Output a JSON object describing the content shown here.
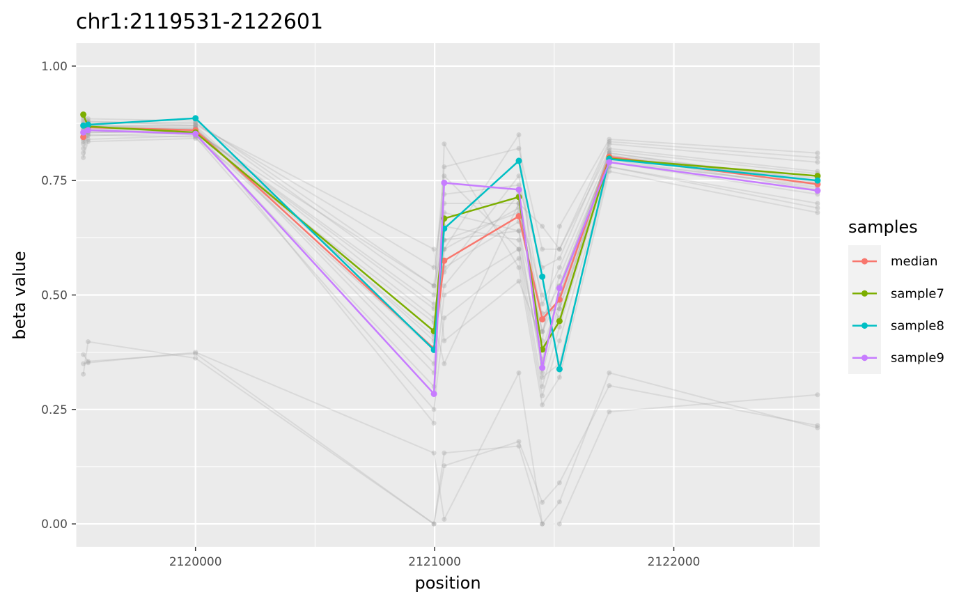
{
  "chart_data": {
    "type": "line",
    "title": "chr1:2119531-2122601",
    "xlabel": "position",
    "ylabel": "beta value",
    "xlim": [
      2119500,
      2122610
    ],
    "ylim": [
      -0.05,
      1.05
    ],
    "x_ticks": [
      2120000,
      2121000,
      2122000
    ],
    "x_tick_labels": [
      "2120000",
      "2121000",
      "2122000"
    ],
    "y_ticks": [
      0,
      0.25,
      0.5,
      0.75,
      1
    ],
    "y_tick_labels": [
      "0.00",
      "0.25",
      "0.50",
      "0.75",
      "1.00"
    ],
    "legend": {
      "title": "samples",
      "position": "right",
      "entries": [
        "median",
        "sample7",
        "sample8",
        "sample9"
      ]
    },
    "x": [
      2119531,
      2119551,
      2120000,
      2120997,
      2121040,
      2121352,
      2121450,
      2121522,
      2121730,
      2122601
    ],
    "series": [
      {
        "name": "median",
        "color": "#F8766D",
        "values": [
          0.845,
          0.866,
          0.86,
          0.383,
          0.575,
          0.672,
          0.447,
          0.49,
          0.802,
          0.742
        ]
      },
      {
        "name": "sample7",
        "color": "#7CAE00",
        "values": [
          0.894,
          0.868,
          0.855,
          0.421,
          0.667,
          0.714,
          0.381,
          0.443,
          0.798,
          0.76
        ]
      },
      {
        "name": "sample8",
        "color": "#00BFC4",
        "values": [
          0.87,
          0.872,
          0.886,
          0.38,
          0.645,
          0.793,
          0.54,
          0.338,
          0.797,
          0.75
        ]
      },
      {
        "name": "sample9",
        "color": "#C77CFF",
        "values": [
          0.855,
          0.86,
          0.852,
          0.284,
          0.745,
          0.73,
          0.341,
          0.515,
          0.79,
          0.728
        ]
      }
    ],
    "background_series": [
      [
        0.82,
        0.848,
        0.855,
        0.52,
        0.62,
        0.64,
        0.42,
        0.54,
        0.8,
        0.76
      ],
      [
        0.835,
        0.855,
        0.858,
        0.48,
        0.7,
        0.7,
        0.38,
        0.5,
        0.81,
        0.75
      ],
      [
        0.86,
        0.87,
        0.862,
        0.45,
        0.56,
        0.66,
        0.46,
        0.47,
        0.79,
        0.74
      ],
      [
        0.88,
        0.88,
        0.87,
        0.4,
        0.6,
        0.69,
        0.5,
        0.45,
        0.82,
        0.77
      ],
      [
        0.85,
        0.865,
        0.865,
        0.35,
        0.65,
        0.62,
        0.35,
        0.52,
        0.805,
        0.73
      ],
      [
        0.84,
        0.86,
        0.85,
        0.3,
        0.5,
        0.6,
        0.3,
        0.43,
        0.79,
        0.72
      ],
      [
        0.87,
        0.875,
        0.875,
        0.56,
        0.72,
        0.74,
        0.56,
        0.58,
        0.83,
        0.79
      ],
      [
        0.83,
        0.85,
        0.845,
        0.25,
        0.45,
        0.58,
        0.28,
        0.4,
        0.78,
        0.7
      ],
      [
        0.89,
        0.885,
        0.88,
        0.52,
        0.78,
        0.82,
        0.6,
        0.6,
        0.835,
        0.8
      ],
      [
        0.86,
        0.86,
        0.86,
        0.42,
        0.62,
        0.68,
        0.42,
        0.5,
        0.8,
        0.75
      ],
      [
        0.85,
        0.855,
        0.858,
        0.47,
        0.55,
        0.76,
        0.48,
        0.56,
        0.81,
        0.745
      ],
      [
        0.875,
        0.87,
        0.868,
        0.33,
        0.68,
        0.64,
        0.33,
        0.47,
        0.795,
        0.735
      ],
      [
        0.81,
        0.84,
        0.848,
        0.38,
        0.6,
        0.85,
        0.32,
        0.35,
        0.78,
        0.69
      ],
      [
        0.845,
        0.862,
        0.864,
        0.22,
        0.83,
        0.56,
        0.26,
        0.32,
        0.77,
        0.68
      ],
      [
        0.865,
        0.868,
        0.871,
        0.6,
        0.4,
        0.53,
        0.4,
        0.65,
        0.84,
        0.81
      ],
      [
        0.8,
        0.835,
        0.842,
        0.44,
        0.35,
        0.7,
        0.65,
        0.6,
        0.815,
        0.765
      ],
      [
        0.885,
        0.878,
        0.876,
        0.5,
        0.76,
        0.6,
        0.36,
        0.48,
        0.8,
        0.755
      ],
      [
        0.855,
        0.858,
        0.854,
        0.41,
        0.52,
        0.72,
        0.45,
        0.52,
        0.805,
        0.748
      ]
    ],
    "outlier_series": [
      [
        0.37,
        0.355,
        0.372,
        0.0,
        0.155,
        0.17,
        0.0,
        0.0,
        0.245,
        0.282
      ],
      [
        0.327,
        0.398,
        0.362,
        0.0,
        0.127,
        0.18,
        0.047,
        0.09,
        0.302,
        0.215
      ],
      [
        0.35,
        0.352,
        0.375,
        0.155,
        0.01,
        0.33,
        0.0,
        0.048,
        0.33,
        0.21
      ]
    ]
  }
}
